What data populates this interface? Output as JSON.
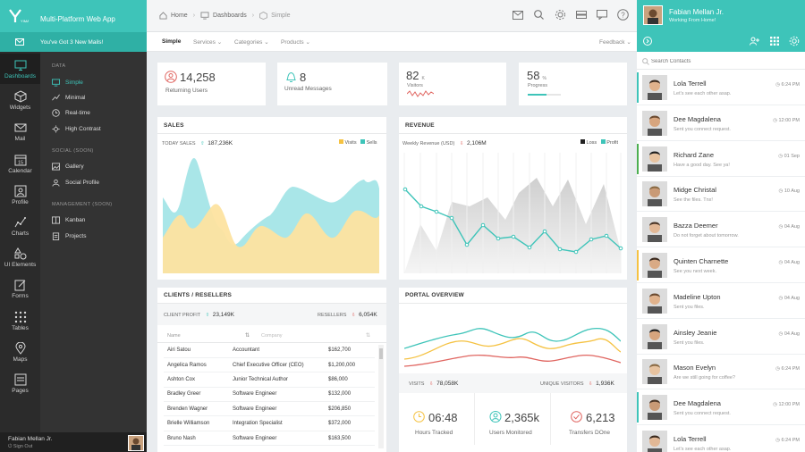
{
  "app": {
    "title": "Multi-Platform Web App",
    "logo_text": "YIMA"
  },
  "mail_notice": "You've Got 3 New Mails!",
  "rail": [
    {
      "label": "Dashboards",
      "icon": "monitor-icon",
      "active": true
    },
    {
      "label": "Widgets",
      "icon": "cube-icon"
    },
    {
      "label": "Mail",
      "icon": "mail-icon"
    },
    {
      "label": "Calendar",
      "icon": "calendar-icon",
      "badge": "15"
    },
    {
      "label": "Profile",
      "icon": "profile-icon"
    },
    {
      "label": "Charts",
      "icon": "chart-icon"
    },
    {
      "label": "UI Elements",
      "icon": "shapes-icon"
    },
    {
      "label": "Forms",
      "icon": "form-icon"
    },
    {
      "label": "Tables",
      "icon": "table-icon"
    },
    {
      "label": "Maps",
      "icon": "map-pin-icon"
    },
    {
      "label": "Pages",
      "icon": "pages-icon"
    }
  ],
  "submenu": {
    "data_head": "DATA",
    "data_items": [
      "Simple",
      "Minimal",
      "Real-time",
      "High Contrast"
    ],
    "social_head": "SOCIAL (SOON)",
    "social_items": [
      "Gallery",
      "Social Profile"
    ],
    "mgmt_head": "MANAGEMENT (SOON)",
    "mgmt_items": [
      "Kanban",
      "Projects"
    ]
  },
  "footer_user": {
    "name": "Fabian Mellan Jr.",
    "action": "Sign Out"
  },
  "breadcrumb": [
    "Home",
    "Dashboards",
    "Simple"
  ],
  "tabs": {
    "simple": "Simple",
    "services": "Services",
    "categories": "Categories",
    "products": "Products",
    "feedback": "Feedback"
  },
  "stats": {
    "returning": {
      "value": "14,258",
      "label": "Returning Users"
    },
    "messages": {
      "value": "8",
      "label": "Unread Messages"
    },
    "visitors": {
      "value": "82",
      "unit": "K",
      "label": "Visitors"
    },
    "progress": {
      "value": "58",
      "unit": "%",
      "label": "Progress",
      "fraction": 0.58
    }
  },
  "sales": {
    "title": "SALES",
    "today_label": "TODAY SALES",
    "today_value": "187,236K",
    "legend": [
      "Visits",
      "Sells"
    ],
    "colors": {
      "visits": "#fde3a0",
      "sells": "#a9e6e8"
    }
  },
  "revenue": {
    "title": "REVENUE",
    "weekly_label": "Weekly Revenue (USD)",
    "weekly_value": "2,106M",
    "legend": [
      "Loss",
      "Profit"
    ],
    "colors": {
      "loss": "#222222",
      "profit": "#3ec4b9"
    }
  },
  "clients": {
    "title": "CLIENTS / RESELLERS",
    "profit_label": "CLIENT PROFIT",
    "profit_value": "23,149K",
    "resellers_label": "RESELLERS",
    "resellers_value": "6,054K",
    "columns": [
      "Name",
      "Company"
    ],
    "rows": [
      [
        "Airi Satou",
        "Accountant",
        "$162,700"
      ],
      [
        "Angelica Ramos",
        "Chief Executive Officer (CEO)",
        "$1,200,000"
      ],
      [
        "Ashton Cox",
        "Junior Technical Author",
        "$86,000"
      ],
      [
        "Bradley Greer",
        "Software Engineer",
        "$132,000"
      ],
      [
        "Brenden Wagner",
        "Software Engineer",
        "$206,850"
      ],
      [
        "Brielle Williamson",
        "Integration Specialist",
        "$372,000"
      ],
      [
        "Bruno Nash",
        "Software Engineer",
        "$163,500"
      ]
    ]
  },
  "portal": {
    "title": "PORTAL OVERVIEW",
    "visits_label": "VISITS",
    "visits_value": "78,058K",
    "unique_label": "UNIQUE VISITORS",
    "unique_value": "1,936K",
    "kpis": [
      {
        "value": "06:48",
        "label": "Hours Tracked",
        "icon": "clock-icon"
      },
      {
        "value": "2,365k",
        "label": "Users Monitored",
        "icon": "users-icon"
      },
      {
        "value": "6,213",
        "label": "Transfers DOne",
        "icon": "check-icon"
      }
    ]
  },
  "profile": {
    "name": "Fabian Mellan Jr.",
    "status": "Working From Home!"
  },
  "contacts_search_placeholder": "Search Contacts",
  "contacts": [
    {
      "name": "Lola Terrell",
      "msg": "Let's see each other asap.",
      "time": "6:24 PM",
      "bar": "#3ec4b9"
    },
    {
      "name": "Dee Magdalena",
      "msg": "Sent you connect request.",
      "time": "12:00 PM",
      "bar": ""
    },
    {
      "name": "Richard Zane",
      "msg": "Have a good day. See ya!",
      "time": "01 Sep",
      "bar": "#4caf50"
    },
    {
      "name": "Midge Christal",
      "msg": "See the files. Tnx!",
      "time": "10 Aug",
      "bar": ""
    },
    {
      "name": "Bazza Deemer",
      "msg": "Do not forget about tomorrow.",
      "time": "04 Aug",
      "bar": ""
    },
    {
      "name": "Quinten Charnette",
      "msg": "See you next week.",
      "time": "04 Aug",
      "bar": "#f5c242"
    },
    {
      "name": "Madeline Upton",
      "msg": "Sent you files.",
      "time": "04 Aug",
      "bar": ""
    },
    {
      "name": "Ainsley Jeanie",
      "msg": "Sent you files.",
      "time": "04 Aug",
      "bar": ""
    },
    {
      "name": "Mason Evelyn",
      "msg": "Are we still going for coffee?",
      "time": "6:24 PM",
      "bar": ""
    },
    {
      "name": "Dee Magdalena",
      "msg": "Sent you connect request.",
      "time": "12:00 PM",
      "bar": "#3ec4b9"
    },
    {
      "name": "Lola Terrell",
      "msg": "Let's see each other asap.",
      "time": "6:24 PM",
      "bar": ""
    }
  ]
}
